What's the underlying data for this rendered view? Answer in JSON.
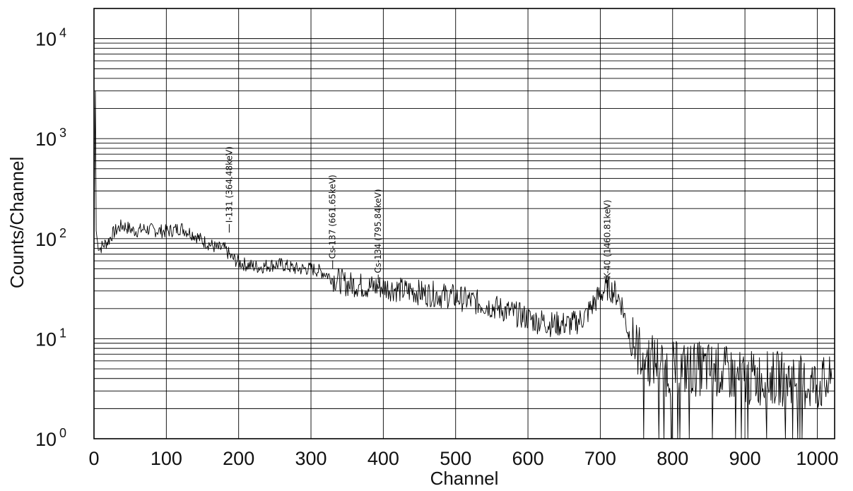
{
  "chart_data": {
    "type": "line",
    "title": "",
    "xlabel": "Channel",
    "ylabel": "Counts/Channel",
    "xlim": [
      0,
      1024
    ],
    "ylim": [
      1,
      20000
    ],
    "yscale": "log",
    "grid": true,
    "legend": "none",
    "x_ticks": [
      {
        "value": 0,
        "label": "0"
      },
      {
        "value": 100,
        "label": "100"
      },
      {
        "value": 200,
        "label": "200"
      },
      {
        "value": 300,
        "label": "300"
      },
      {
        "value": 400,
        "label": "400"
      },
      {
        "value": 500,
        "label": "500"
      },
      {
        "value": 600,
        "label": "600"
      },
      {
        "value": 700,
        "label": "700"
      },
      {
        "value": 800,
        "label": "800"
      },
      {
        "value": 900,
        "label": "900"
      },
      {
        "value": 1000,
        "label": "1000"
      }
    ],
    "y_ticks": [
      {
        "value": 1,
        "base": "10",
        "exp": "0"
      },
      {
        "value": 10,
        "base": "10",
        "exp": "1"
      },
      {
        "value": 100,
        "base": "10",
        "exp": "2"
      },
      {
        "value": 1000,
        "base": "10",
        "exp": "3"
      },
      {
        "value": 10000,
        "base": "10",
        "exp": "4"
      }
    ],
    "series": [
      {
        "color": "#000000",
        "x": [
          0,
          2,
          3,
          5,
          8,
          12,
          16,
          20,
          25,
          30,
          35,
          40,
          45,
          50,
          55,
          60,
          70,
          80,
          90,
          100,
          110,
          120,
          130,
          140,
          150,
          160,
          170,
          180,
          190,
          200,
          210,
          220,
          230,
          240,
          250,
          260,
          270,
          280,
          290,
          300,
          310,
          320,
          330,
          340,
          350,
          360,
          370,
          380,
          390,
          400,
          410,
          420,
          430,
          440,
          450,
          460,
          470,
          480,
          490,
          500,
          510,
          520,
          530,
          540,
          550,
          560,
          570,
          580,
          590,
          600,
          610,
          620,
          630,
          640,
          650,
          660,
          670,
          680,
          690,
          700,
          705,
          710,
          715,
          720,
          725,
          730,
          735,
          740,
          745,
          750,
          760,
          770,
          780,
          790,
          800,
          810,
          820,
          830,
          840,
          850,
          860,
          870,
          880,
          890,
          900,
          910,
          920,
          930,
          940,
          950,
          960,
          970,
          980,
          990,
          1000,
          1010,
          1020
        ],
        "y": [
          100,
          3000,
          120,
          90,
          80,
          85,
          90,
          95,
          110,
          120,
          130,
          135,
          130,
          125,
          120,
          120,
          125,
          122,
          120,
          118,
          122,
          128,
          118,
          108,
          95,
          88,
          80,
          80,
          65,
          58,
          55,
          53,
          52,
          54,
          55,
          55,
          52,
          50,
          50,
          50,
          48,
          45,
          40,
          38,
          35,
          35,
          34,
          33,
          33,
          33,
          32,
          31,
          30,
          30,
          29,
          28,
          28,
          27,
          27,
          26,
          25,
          24,
          23,
          22,
          21,
          20,
          19,
          18,
          17,
          16,
          15,
          15,
          14,
          14,
          14,
          14,
          15,
          17,
          22,
          28,
          30,
          32,
          31,
          29,
          26,
          22,
          15,
          11,
          9,
          8,
          7,
          6,
          6,
          5,
          5,
          5,
          5,
          5,
          5,
          5,
          5,
          4.5,
          4.5,
          4,
          4,
          4,
          4,
          4,
          4,
          4,
          4,
          4,
          3.5,
          3.5,
          3.5,
          3.5,
          3.5
        ]
      }
    ],
    "annotations": [
      {
        "text": "I-131 (364.48keV)",
        "x": 187,
        "y_top": 115
      },
      {
        "text": "Cs-137 (661.65keV)",
        "x": 330,
        "y_top": 50
      },
      {
        "text": "Cs-134 (795.84keV)",
        "x": 393,
        "y_top": 36
      },
      {
        "text": "K-40 (1460.81keV)",
        "x": 710,
        "y_top": 32
      }
    ]
  }
}
